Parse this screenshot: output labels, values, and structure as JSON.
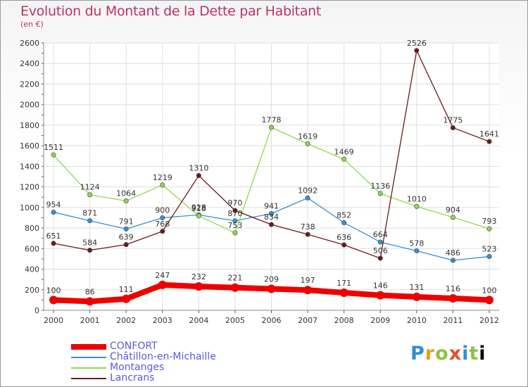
{
  "chart_data": {
    "type": "line",
    "title": "Evolution du Montant de la Dette par Habitant",
    "subtitle": "(en €)",
    "x": [
      "2000",
      "2001",
      "2002",
      "2003",
      "2004",
      "2005",
      "2006",
      "2007",
      "2008",
      "2009",
      "2010",
      "2011",
      "2012"
    ],
    "ylim": [
      0,
      2600
    ],
    "yticks": [
      0,
      200,
      400,
      600,
      800,
      1000,
      1200,
      1400,
      1600,
      1800,
      2000,
      2200,
      2400,
      2600
    ],
    "grid": true,
    "legend_position": "bottom-left",
    "series": [
      {
        "name": "CONFORT",
        "color": "#ee0000",
        "values": [
          100,
          86,
          111,
          247,
          232,
          221,
          209,
          197,
          171,
          146,
          131,
          116,
          100
        ]
      },
      {
        "name": "Châtillon-en-Michaille",
        "color": "#3a8fd0",
        "values": [
          954,
          871,
          791,
          900,
          928,
          870,
          941,
          1092,
          852,
          664,
          578,
          486,
          523
        ]
      },
      {
        "name": "Montanges",
        "color": "#8ed94a",
        "values": [
          1511,
          1124,
          1064,
          1219,
          918,
          753,
          1778,
          1619,
          1469,
          1136,
          1010,
          904,
          793
        ]
      },
      {
        "name": "Lancrans",
        "color": "#6b1a1a",
        "values": [
          651,
          584,
          639,
          768,
          1310,
          970,
          834,
          738,
          636,
          506,
          2526,
          1775,
          1641
        ]
      }
    ]
  },
  "logo": {
    "letters": [
      "P",
      "r",
      "o",
      "x",
      "i",
      "t",
      "i"
    ]
  }
}
